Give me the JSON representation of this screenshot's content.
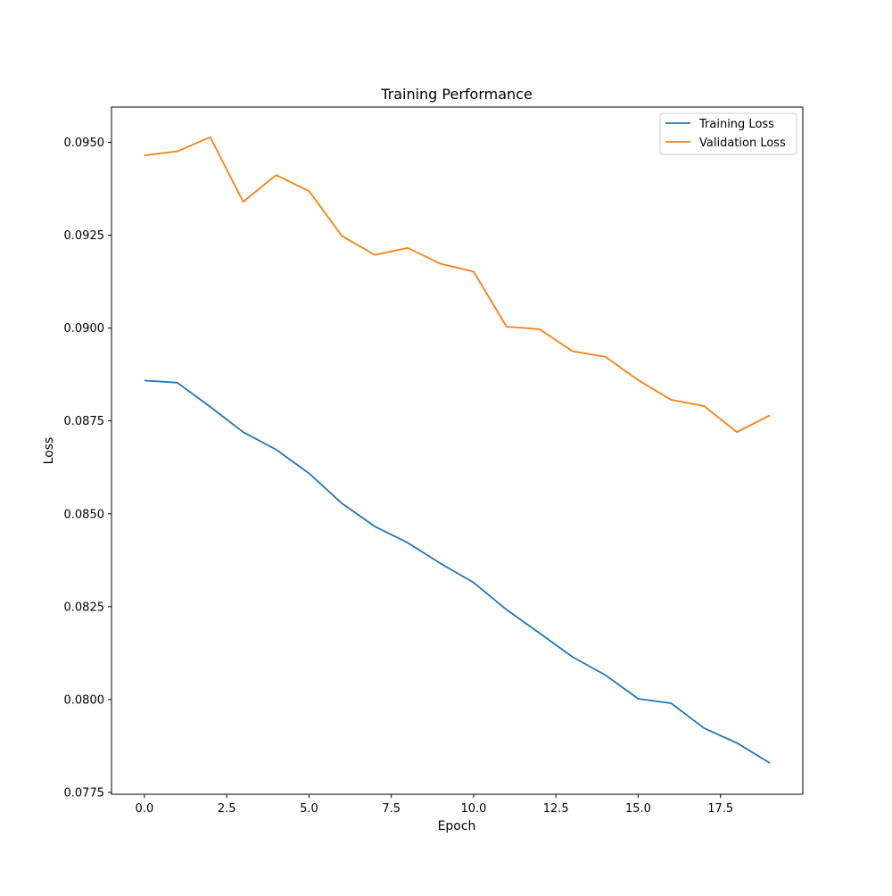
{
  "chart_data": {
    "type": "line",
    "title": "Training Performance",
    "xlabel": "Epoch",
    "ylabel": "Loss",
    "xlim": [
      -1,
      20
    ],
    "ylim": [
      0.07745,
      0.09595
    ],
    "xticks": [
      0.0,
      2.5,
      5.0,
      7.5,
      10.0,
      12.5,
      15.0,
      17.5
    ],
    "xtick_labels": [
      "0.0",
      "2.5",
      "5.0",
      "7.5",
      "10.0",
      "12.5",
      "15.0",
      "17.5"
    ],
    "yticks": [
      0.0775,
      0.08,
      0.0825,
      0.085,
      0.0875,
      0.09,
      0.0925,
      0.095
    ],
    "ytick_labels": [
      "0.0775",
      "0.0800",
      "0.0825",
      "0.0850",
      "0.0875",
      "0.0900",
      "0.0925",
      "0.0950"
    ],
    "grid": false,
    "legend_position": "top-right",
    "x": [
      0,
      1,
      2,
      3,
      4,
      5,
      6,
      7,
      8,
      9,
      10,
      11,
      12,
      13,
      14,
      15,
      16,
      17,
      18,
      19
    ],
    "series": [
      {
        "name": "Training Loss",
        "color": "#1f77b4",
        "values": [
          0.08859,
          0.08853,
          0.08788,
          0.0872,
          0.08673,
          0.08609,
          0.08528,
          0.08466,
          0.08422,
          0.08366,
          0.08315,
          0.08242,
          0.08179,
          0.08115,
          0.08066,
          0.08002,
          0.0799,
          0.07923,
          0.07883,
          0.07829
        ]
      },
      {
        "name": "Validation Loss",
        "color": "#ff7f0e",
        "values": [
          0.09465,
          0.09476,
          0.09514,
          0.0934,
          0.09412,
          0.09369,
          0.09248,
          0.09197,
          0.09216,
          0.09173,
          0.09152,
          0.09004,
          0.08997,
          0.08938,
          0.08923,
          0.0886,
          0.08807,
          0.0879,
          0.0872,
          0.08765
        ]
      }
    ]
  }
}
